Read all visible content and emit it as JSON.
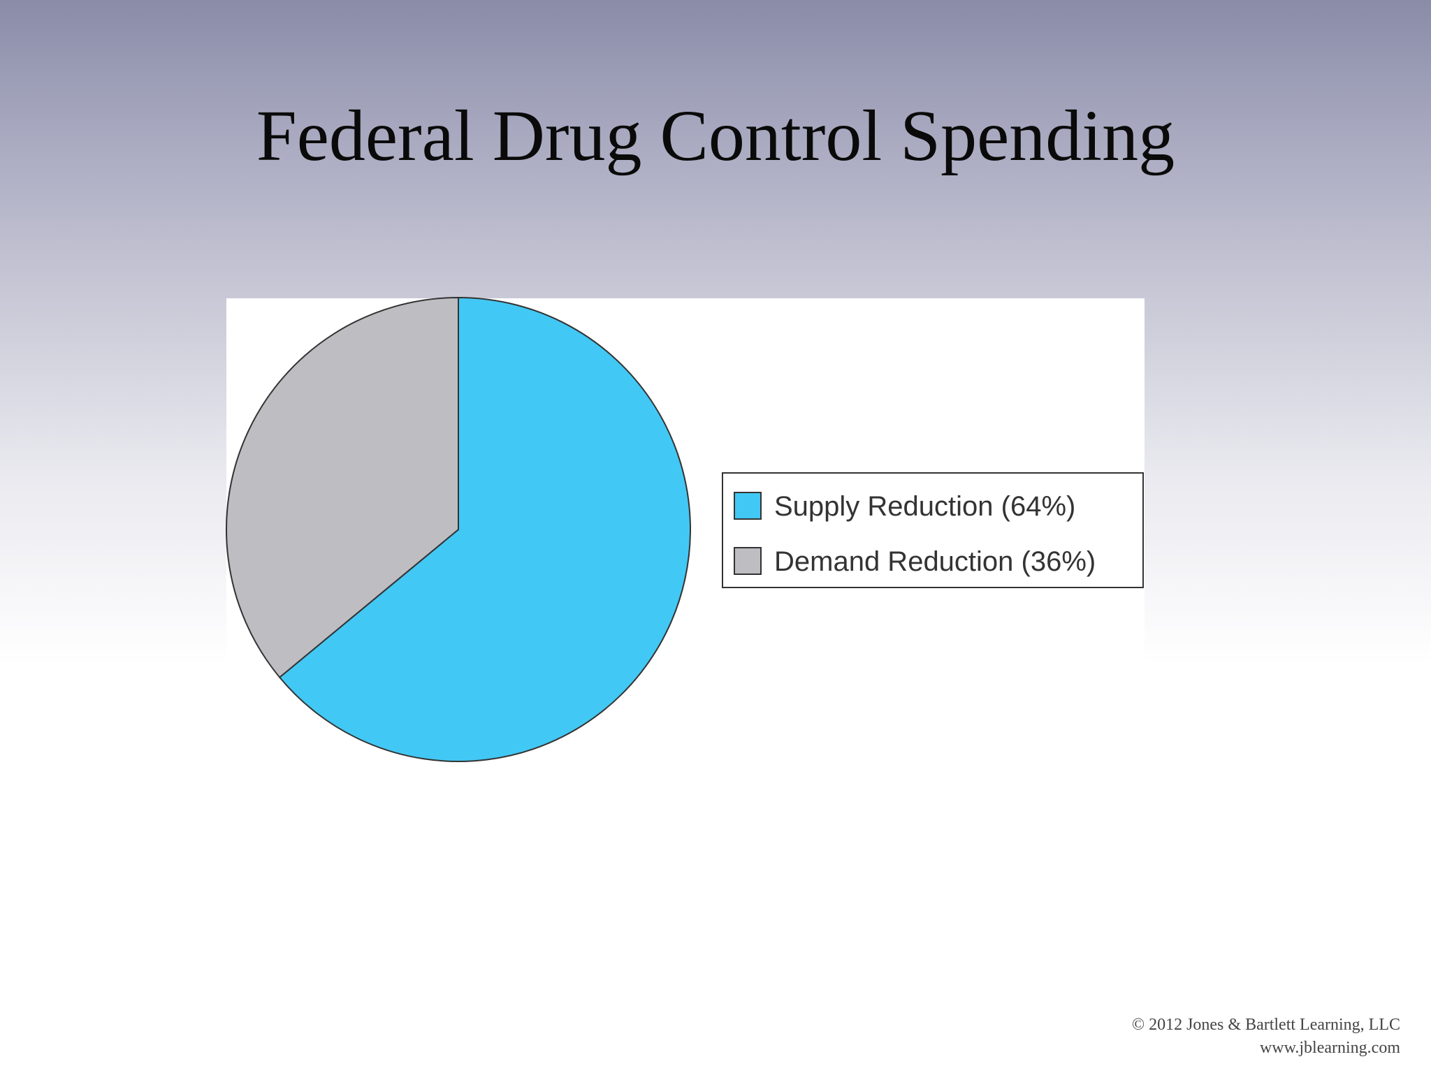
{
  "slide": {
    "title": "Federal Drug Control Spending"
  },
  "chart_data": {
    "type": "pie",
    "categories": [
      "Supply Reduction (64%)",
      "Demand Reduction (36%)"
    ],
    "values": [
      64,
      36
    ],
    "colors": [
      "#42c8f4",
      "#bdbdc2"
    ],
    "legend_position": "right",
    "start_angle_deg": 0,
    "direction": "clockwise"
  },
  "footer": {
    "copyright": "© 2012 Jones & Bartlett Learning, LLC",
    "url": "www.jblearning.com"
  }
}
